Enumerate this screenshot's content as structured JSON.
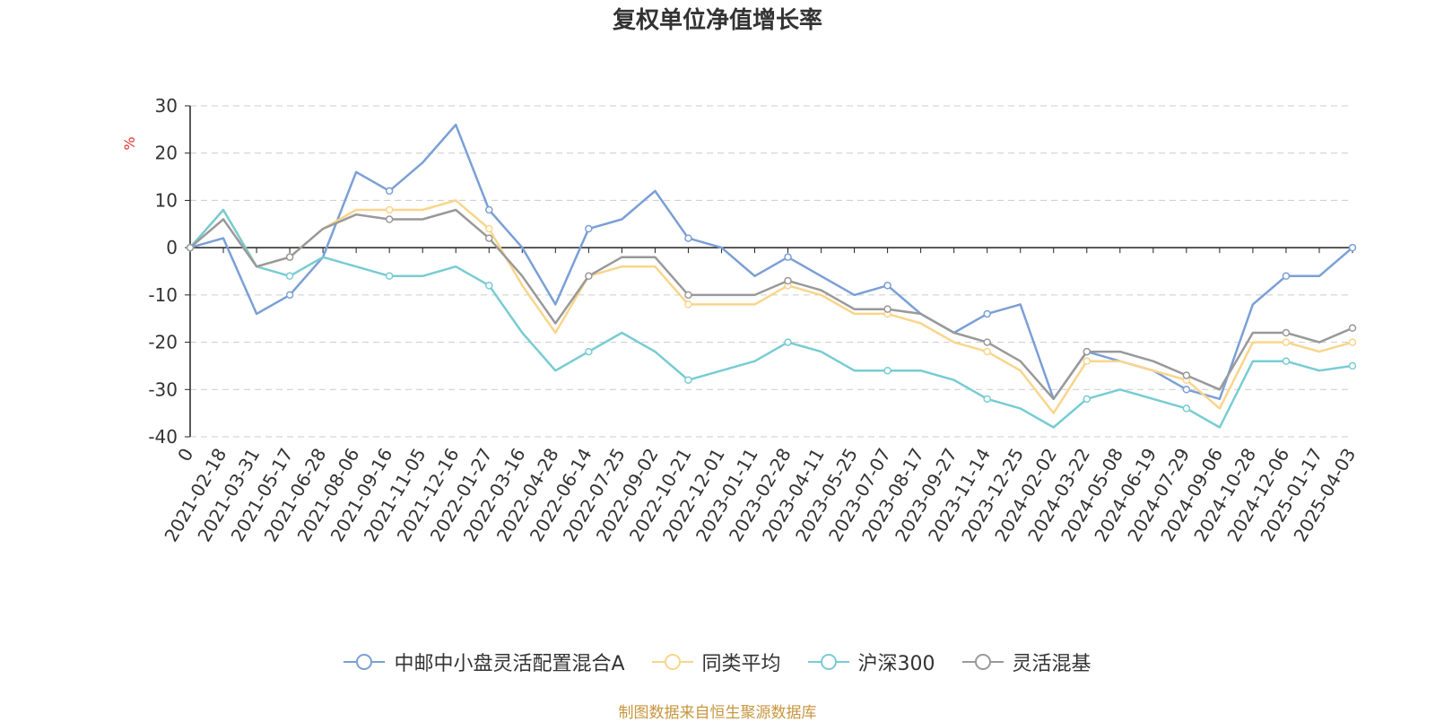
{
  "chart_data": {
    "type": "line",
    "title": "复权单位净值增长率",
    "ylabel": "%",
    "ylim": [
      -40,
      30
    ],
    "yticks": [
      30,
      20,
      10,
      0,
      -10,
      -20,
      -30,
      -40
    ],
    "grid": true,
    "legend_position": "bottom-center",
    "source": "制图数据来自恒生聚源数据库",
    "x": [
      "0",
      "2021-02-18",
      "2021-03-31",
      "2021-05-17",
      "2021-06-28",
      "2021-08-06",
      "2021-09-16",
      "2021-11-05",
      "2021-12-16",
      "2022-01-27",
      "2022-03-16",
      "2022-04-28",
      "2022-06-14",
      "2022-07-25",
      "2022-09-02",
      "2022-10-21",
      "2022-12-01",
      "2023-01-11",
      "2023-02-28",
      "2023-04-11",
      "2023-05-25",
      "2023-07-07",
      "2023-08-17",
      "2023-09-27",
      "2023-11-14",
      "2023-12-25",
      "2024-02-02",
      "2024-03-22",
      "2024-05-08",
      "2024-06-19",
      "2024-07-29",
      "2024-09-06",
      "2024-10-28",
      "2024-12-06",
      "2025-01-17",
      "2025-04-03"
    ],
    "series": [
      {
        "name": "中邮中小盘灵活配置混合A",
        "color": "#7b9fd6",
        "values": [
          0,
          2,
          -14,
          -10,
          -2,
          16,
          12,
          18,
          26,
          8,
          0,
          -12,
          4,
          6,
          12,
          2,
          0,
          -6,
          -2,
          -6,
          -10,
          -8,
          -14,
          -18,
          -14,
          -12,
          -32,
          -22,
          -24,
          -26,
          -30,
          -32,
          -12,
          -6,
          -6,
          0
        ]
      },
      {
        "name": "同类平均",
        "color": "#f9d58b",
        "values": [
          0,
          8,
          -4,
          -2,
          4,
          8,
          8,
          8,
          10,
          4,
          -8,
          -18,
          -6,
          -4,
          -4,
          -12,
          -12,
          -12,
          -8,
          -10,
          -14,
          -14,
          -16,
          -20,
          -22,
          -26,
          -35,
          -24,
          -24,
          -26,
          -28,
          -34,
          -20,
          -20,
          -22,
          -20
        ]
      },
      {
        "name": "沪深300",
        "color": "#78ccd3",
        "values": [
          0,
          8,
          -4,
          -6,
          -2,
          -4,
          -6,
          -6,
          -4,
          -8,
          -18,
          -26,
          -22,
          -18,
          -22,
          -28,
          -26,
          -24,
          -20,
          -22,
          -26,
          -26,
          -26,
          -28,
          -32,
          -34,
          -38,
          -32,
          -30,
          -32,
          -34,
          -38,
          -24,
          -24,
          -26,
          -25
        ]
      },
      {
        "name": "灵活混基",
        "color": "#999999",
        "values": [
          0,
          6,
          -4,
          -2,
          4,
          7,
          6,
          6,
          8,
          2,
          -6,
          -16,
          -6,
          -2,
          -2,
          -10,
          -10,
          -10,
          -7,
          -9,
          -13,
          -13,
          -14,
          -18,
          -20,
          -24,
          -32,
          -22,
          -22,
          -24,
          -27,
          -30,
          -18,
          -18,
          -20,
          -17
        ]
      }
    ]
  }
}
